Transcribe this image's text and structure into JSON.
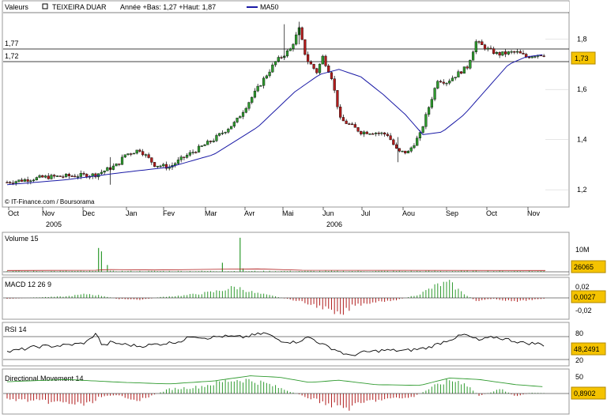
{
  "legend": {
    "label": "Valeurs",
    "name": "TEIXEIRA DUAR",
    "stats": "Année +Bas: 1,27 +Haut: 1,87",
    "ma_label": "MA50",
    "ma_color": "#1a1aa6"
  },
  "credit": "© IT-Finance.com / Boursorama",
  "colors": {
    "up": "#2e9a2e",
    "down": "#b01c1c",
    "price_line": "#000000",
    "badge": "#f5c300"
  },
  "chart_data": [
    {
      "type": "candlestick",
      "title": "",
      "y_ticks": [
        "1,2",
        "1,4",
        "1,6",
        "1,8"
      ],
      "ylim": [
        1.15,
        1.9
      ],
      "reference_lines": [
        {
          "label": "1,77",
          "value": 1.77
        },
        {
          "label": "1,72",
          "value": 1.72
        }
      ],
      "last_value": "1,73",
      "x_month_labels": [
        "Oct",
        "Nov",
        "Dec",
        "Jan",
        "Fev",
        "Mar",
        "Avr",
        "Mai",
        "Jun",
        "Jul",
        "Aou",
        "Sep",
        "Oct",
        "Nov"
      ],
      "x_year_labels": [
        "2005",
        "2006"
      ],
      "price_keypoints": [
        [
          0,
          1.23
        ],
        [
          25,
          1.25
        ],
        [
          60,
          1.26
        ],
        [
          75,
          1.3
        ],
        [
          80,
          1.34
        ],
        [
          90,
          1.36
        ],
        [
          100,
          1.3
        ],
        [
          110,
          1.29
        ],
        [
          120,
          1.33
        ],
        [
          140,
          1.4
        ],
        [
          155,
          1.47
        ],
        [
          165,
          1.56
        ],
        [
          175,
          1.65
        ],
        [
          182,
          1.71
        ],
        [
          192,
          1.76
        ],
        [
          198,
          1.84
        ],
        [
          203,
          1.72
        ],
        [
          210,
          1.67
        ],
        [
          214,
          1.73
        ],
        [
          220,
          1.65
        ],
        [
          226,
          1.48
        ],
        [
          232,
          1.46
        ],
        [
          240,
          1.43
        ],
        [
          248,
          1.43
        ],
        [
          258,
          1.42
        ],
        [
          265,
          1.35
        ],
        [
          272,
          1.35
        ],
        [
          280,
          1.42
        ],
        [
          286,
          1.53
        ],
        [
          292,
          1.64
        ],
        [
          298,
          1.63
        ],
        [
          305,
          1.66
        ],
        [
          312,
          1.69
        ],
        [
          318,
          1.79
        ],
        [
          326,
          1.76
        ],
        [
          333,
          1.74
        ],
        [
          345,
          1.75
        ],
        [
          352,
          1.73
        ],
        [
          360,
          1.74
        ],
        [
          365,
          1.74
        ]
      ],
      "ma50_keypoints": [
        [
          0,
          1.22
        ],
        [
          40,
          1.24
        ],
        [
          80,
          1.27
        ],
        [
          110,
          1.29
        ],
        [
          140,
          1.34
        ],
        [
          170,
          1.45
        ],
        [
          195,
          1.59
        ],
        [
          212,
          1.66
        ],
        [
          225,
          1.68
        ],
        [
          240,
          1.65
        ],
        [
          255,
          1.58
        ],
        [
          270,
          1.5
        ],
        [
          282,
          1.42
        ],
        [
          295,
          1.43
        ],
        [
          310,
          1.5
        ],
        [
          325,
          1.6
        ],
        [
          340,
          1.7
        ],
        [
          352,
          1.73
        ],
        [
          365,
          1.74
        ]
      ]
    },
    {
      "type": "bar",
      "title": "Volume 15",
      "y_ticks": [
        "10M"
      ],
      "ylim": [
        0,
        16
      ],
      "last_value": "26065",
      "spikes": [
        [
          62,
          10.5
        ],
        [
          64,
          9
        ],
        [
          68,
          3
        ],
        [
          146,
          4
        ],
        [
          158,
          15
        ],
        [
          160,
          1.5
        ]
      ],
      "baseline_volume": 0.4
    },
    {
      "type": "histogram",
      "title": "MACD 12 26 9",
      "y_ticks": [
        "0,02",
        "-0,02"
      ],
      "ylim": [
        -0.04,
        0.035
      ],
      "last_value": "0,0027",
      "keypoints": [
        [
          0,
          -0.002
        ],
        [
          20,
          0.001
        ],
        [
          40,
          0.003
        ],
        [
          55,
          0.008
        ],
        [
          65,
          0.004
        ],
        [
          75,
          -0.002
        ],
        [
          90,
          -0.004
        ],
        [
          105,
          0.002
        ],
        [
          120,
          0.005
        ],
        [
          140,
          0.012
        ],
        [
          155,
          0.022
        ],
        [
          168,
          0.01
        ],
        [
          180,
          0.004
        ],
        [
          195,
          -0.005
        ],
        [
          215,
          -0.02
        ],
        [
          225,
          -0.038
        ],
        [
          235,
          -0.015
        ],
        [
          250,
          -0.008
        ],
        [
          265,
          -0.004
        ],
        [
          280,
          0.008
        ],
        [
          292,
          0.026
        ],
        [
          300,
          0.03
        ],
        [
          308,
          0.012
        ],
        [
          318,
          -0.006
        ],
        [
          330,
          -0.002
        ],
        [
          345,
          -0.008
        ],
        [
          355,
          -0.004
        ],
        [
          365,
          -0.002
        ]
      ]
    },
    {
      "type": "line",
      "title": "RSI 14",
      "y_ticks": [
        "80",
        "20"
      ],
      "ylim": [
        0,
        100
      ],
      "last_value": "48,2491",
      "keypoints": [
        [
          0,
          32
        ],
        [
          10,
          38
        ],
        [
          20,
          45
        ],
        [
          35,
          47
        ],
        [
          50,
          52
        ],
        [
          55,
          58
        ],
        [
          60,
          78
        ],
        [
          65,
          45
        ],
        [
          70,
          55
        ],
        [
          80,
          50
        ],
        [
          90,
          46
        ],
        [
          100,
          50
        ],
        [
          110,
          54
        ],
        [
          120,
          60
        ],
        [
          125,
          72
        ],
        [
          135,
          66
        ],
        [
          145,
          70
        ],
        [
          160,
          68
        ],
        [
          175,
          78
        ],
        [
          185,
          60
        ],
        [
          195,
          55
        ],
        [
          205,
          68
        ],
        [
          215,
          48
        ],
        [
          225,
          34
        ],
        [
          232,
          22
        ],
        [
          240,
          30
        ],
        [
          255,
          36
        ],
        [
          270,
          35
        ],
        [
          285,
          42
        ],
        [
          300,
          62
        ],
        [
          310,
          74
        ],
        [
          320,
          60
        ],
        [
          330,
          68
        ],
        [
          340,
          62
        ],
        [
          350,
          54
        ],
        [
          360,
          52
        ],
        [
          365,
          48
        ]
      ]
    },
    {
      "type": "histogram",
      "title": "Directional Movement 14",
      "y_ticks": [
        "50"
      ],
      "ylim": [
        -50,
        60
      ],
      "last_value": "0,8902",
      "keypoints": [
        [
          0,
          -15
        ],
        [
          20,
          -20
        ],
        [
          40,
          -25
        ],
        [
          55,
          -30
        ],
        [
          62,
          -10
        ],
        [
          75,
          -5
        ],
        [
          90,
          -18
        ],
        [
          110,
          12
        ],
        [
          130,
          18
        ],
        [
          150,
          35
        ],
        [
          160,
          38
        ],
        [
          175,
          28
        ],
        [
          190,
          8
        ],
        [
          205,
          -12
        ],
        [
          220,
          -30
        ],
        [
          232,
          -38
        ],
        [
          245,
          -20
        ],
        [
          260,
          -14
        ],
        [
          275,
          -10
        ],
        [
          290,
          20
        ],
        [
          300,
          36
        ],
        [
          310,
          30
        ],
        [
          320,
          -6
        ],
        [
          335,
          12
        ],
        [
          345,
          -8
        ],
        [
          355,
          2
        ],
        [
          365,
          1
        ]
      ],
      "adx_keypoints": [
        [
          0,
          32
        ],
        [
          40,
          38
        ],
        [
          80,
          30
        ],
        [
          110,
          26
        ],
        [
          140,
          34
        ],
        [
          165,
          48
        ],
        [
          185,
          44
        ],
        [
          205,
          30
        ],
        [
          225,
          36
        ],
        [
          250,
          24
        ],
        [
          280,
          22
        ],
        [
          300,
          42
        ],
        [
          320,
          38
        ],
        [
          345,
          24
        ],
        [
          365,
          18
        ]
      ]
    }
  ]
}
